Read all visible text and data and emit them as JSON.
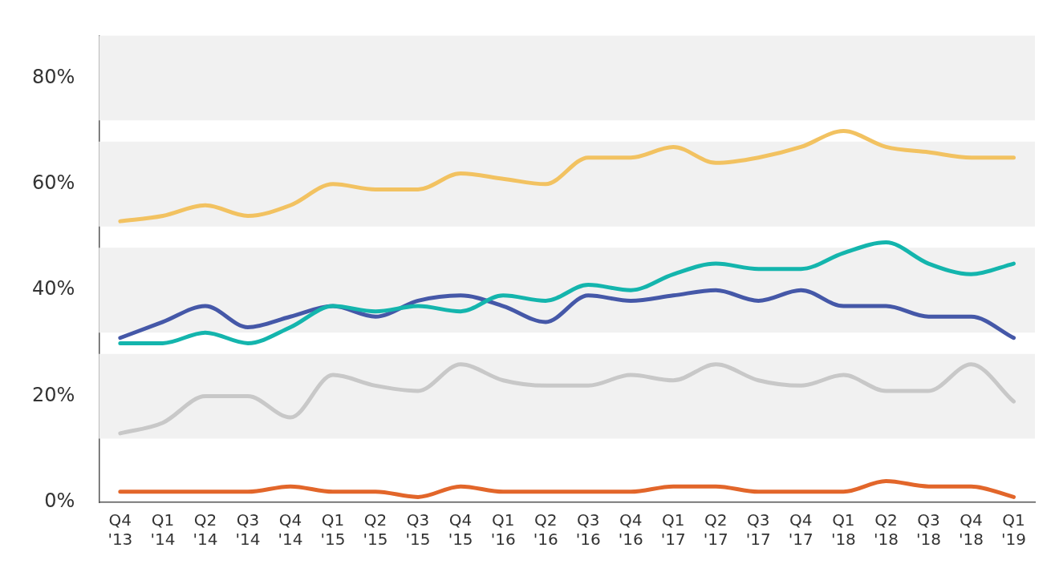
{
  "chart_data": {
    "type": "line",
    "categories": [
      "Q4 '13",
      "Q1 '14",
      "Q2 '14",
      "Q3 '14",
      "Q4 '14",
      "Q1 '15",
      "Q2 '15",
      "Q3 '15",
      "Q4 '15",
      "Q1 '16",
      "Q2 '16",
      "Q3 '16",
      "Q4 '16",
      "Q1 '17",
      "Q2 '17",
      "Q3 '17",
      "Q4 '17",
      "Q1 '18",
      "Q2 '18",
      "Q3 '18",
      "Q4 '18",
      "Q1 '19"
    ],
    "series": [
      {
        "color": "#f2c261",
        "values": [
          53,
          54,
          56,
          54,
          56,
          60,
          59,
          59,
          62,
          61,
          60,
          65,
          65,
          67,
          64,
          65,
          67,
          70,
          67,
          66,
          65,
          65
        ]
      },
      {
        "color": "#14b5ad",
        "values": [
          30,
          30,
          32,
          30,
          33,
          37,
          36,
          37,
          36,
          39,
          38,
          41,
          40,
          43,
          45,
          44,
          44,
          47,
          49,
          45,
          43,
          45
        ]
      },
      {
        "color": "#4558a8",
        "values": [
          31,
          34,
          37,
          33,
          35,
          37,
          35,
          38,
          39,
          37,
          34,
          39,
          38,
          39,
          40,
          38,
          40,
          37,
          37,
          35,
          35,
          31
        ]
      },
      {
        "color": "#c8c8c8",
        "values": [
          13,
          15,
          20,
          20,
          16,
          24,
          22,
          21,
          26,
          23,
          22,
          22,
          24,
          23,
          26,
          23,
          22,
          24,
          21,
          21,
          26,
          19
        ]
      },
      {
        "color": "#e2662a",
        "values": [
          2,
          2,
          2,
          2,
          3,
          2,
          2,
          1,
          3,
          2,
          2,
          2,
          2,
          3,
          3,
          2,
          2,
          2,
          4,
          3,
          3,
          1
        ]
      }
    ],
    "ylim": [
      0,
      88
    ],
    "yticks": [
      {
        "value": 0,
        "label": "0%"
      },
      {
        "value": 20,
        "label": "20%"
      },
      {
        "value": 40,
        "label": "40%"
      },
      {
        "value": 60,
        "label": "60%"
      },
      {
        "value": 80,
        "label": "80%"
      }
    ],
    "bands": [
      {
        "axis": "y",
        "from": 12,
        "to": 28,
        "color": "#f1f1f1"
      },
      {
        "axis": "y",
        "from": 32,
        "to": 48,
        "color": "#f1f1f1"
      },
      {
        "axis": "y",
        "from": 52,
        "to": 68,
        "color": "#f1f1f1"
      },
      {
        "axis": "y",
        "from": 72,
        "to": 88,
        "color": "#f1f1f1"
      }
    ],
    "grid": false,
    "legend": false,
    "marker": "none",
    "line_style": "solid"
  }
}
